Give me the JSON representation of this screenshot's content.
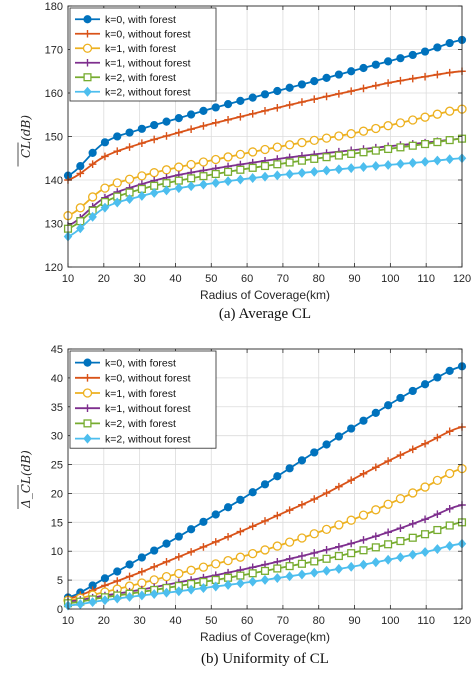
{
  "chart_data": [
    {
      "type": "line",
      "caption": "(a) Average CL",
      "xlabel": "Radius of Coverage(km)",
      "ylabel": "CL(dB)",
      "xlim": [
        10,
        120
      ],
      "ylim": [
        120,
        180
      ],
      "xticks": [
        10,
        20,
        30,
        40,
        50,
        60,
        70,
        80,
        90,
        100,
        110,
        120
      ],
      "yticks": [
        120,
        130,
        140,
        150,
        160,
        170,
        180
      ],
      "grid": true,
      "legend": "top-left",
      "x": [
        10,
        20,
        30,
        40,
        50,
        60,
        70,
        80,
        90,
        100,
        110,
        120
      ],
      "series": [
        {
          "name": "k=0, with forest",
          "color": "#0072BD",
          "marker": "circle-filled",
          "values": [
            141.0,
            148.5,
            151.6,
            154.0,
            156.4,
            158.6,
            160.8,
            163.0,
            165.2,
            167.4,
            169.6,
            172.2
          ]
        },
        {
          "name": "k=0, without forest",
          "color": "#D95319",
          "marker": "plus",
          "values": [
            140.0,
            145.3,
            148.3,
            150.7,
            152.9,
            154.9,
            156.9,
            158.8,
            160.6,
            162.4,
            163.8,
            165.0
          ]
        },
        {
          "name": "k=1, with forest",
          "color": "#EDB120",
          "marker": "circle-open",
          "values": [
            131.8,
            138.0,
            140.8,
            142.8,
            144.5,
            146.2,
            147.8,
            149.3,
            150.8,
            152.6,
            154.5,
            156.3
          ]
        },
        {
          "name": "k=1, without forest",
          "color": "#7E2F8E",
          "marker": "plus",
          "values": [
            129.5,
            135.8,
            138.9,
            141.0,
            142.5,
            143.8,
            145.0,
            146.0,
            146.9,
            147.8,
            148.6,
            149.5
          ]
        },
        {
          "name": "k=2, with forest",
          "color": "#77AC30",
          "marker": "square-open",
          "values": [
            128.8,
            134.8,
            137.8,
            139.7,
            141.2,
            142.6,
            143.8,
            145.0,
            146.1,
            147.2,
            148.3,
            149.5
          ]
        },
        {
          "name": "k=2, without forest",
          "color": "#4DBEEE",
          "marker": "diamond",
          "values": [
            127.0,
            133.5,
            136.2,
            138.0,
            139.2,
            140.3,
            141.2,
            142.0,
            142.8,
            143.5,
            144.2,
            145.0
          ]
        }
      ]
    },
    {
      "type": "line",
      "caption": "(b) Uniformity of CL",
      "xlabel": "Radius of Coverage(km)",
      "ylabel": "Δ_CL(dB)",
      "xlim": [
        10,
        120
      ],
      "ylim": [
        0,
        45
      ],
      "xticks": [
        10,
        20,
        30,
        40,
        50,
        60,
        70,
        80,
        90,
        100,
        110,
        120
      ],
      "yticks": [
        0,
        5,
        10,
        15,
        20,
        25,
        30,
        35,
        40,
        45
      ],
      "grid": true,
      "legend": "top-left",
      "x": [
        10,
        20,
        30,
        40,
        50,
        60,
        70,
        80,
        90,
        100,
        110,
        120
      ],
      "series": [
        {
          "name": "k=0, with forest",
          "color": "#0072BD",
          "marker": "circle-filled",
          "values": [
            2.0,
            5.2,
            8.7,
            12.2,
            15.9,
            19.6,
            23.6,
            27.6,
            31.6,
            35.5,
            39.0,
            42.0
          ]
        },
        {
          "name": "k=0, without forest",
          "color": "#D95319",
          "marker": "plus",
          "values": [
            1.8,
            4.0,
            6.3,
            8.8,
            11.3,
            13.9,
            16.6,
            19.4,
            22.6,
            25.8,
            28.7,
            31.5
          ]
        },
        {
          "name": "k=1, with forest",
          "color": "#EDB120",
          "marker": "circle-open",
          "values": [
            1.5,
            2.9,
            4.4,
            6.0,
            7.6,
            9.3,
            11.2,
            13.3,
            15.6,
            18.3,
            21.2,
            24.3
          ]
        },
        {
          "name": "k=1, without forest",
          "color": "#7E2F8E",
          "marker": "plus",
          "values": [
            1.3,
            2.3,
            3.3,
            4.5,
            5.7,
            7.0,
            8.4,
            9.9,
            11.5,
            13.4,
            15.6,
            18.0
          ]
        },
        {
          "name": "k=2, with forest",
          "color": "#77AC30",
          "marker": "square-open",
          "values": [
            1.0,
            2.0,
            2.9,
            3.9,
            4.9,
            6.0,
            7.2,
            8.4,
            9.8,
            11.3,
            13.0,
            15.0
          ]
        },
        {
          "name": "k=2, without forest",
          "color": "#4DBEEE",
          "marker": "diamond",
          "values": [
            0.6,
            1.5,
            2.3,
            3.0,
            3.8,
            4.6,
            5.5,
            6.4,
            7.4,
            8.6,
            9.9,
            11.3
          ]
        }
      ]
    }
  ]
}
